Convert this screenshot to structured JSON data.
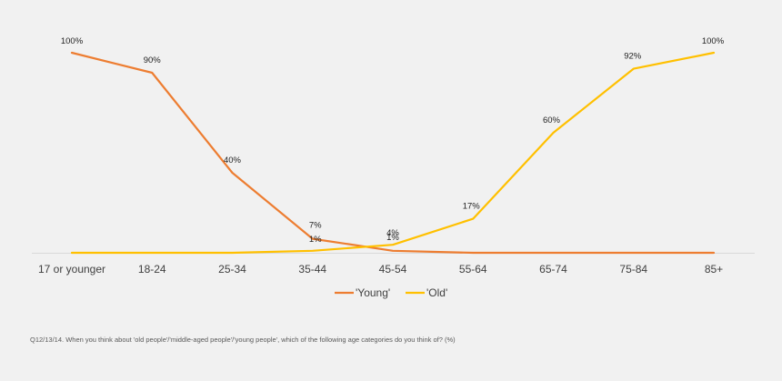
{
  "chart_data": {
    "type": "line",
    "categories": [
      "17 or younger",
      "18-24",
      "25-34",
      "35-44",
      "45-54",
      "55-64",
      "65-74",
      "75-84",
      "85+"
    ],
    "ylim": [
      0,
      100
    ],
    "grid": false,
    "legend_position": "bottom",
    "series": [
      {
        "name": "'Young'",
        "color": "#ED7D31",
        "values": [
          100,
          90,
          40,
          7,
          1,
          0,
          0,
          0,
          0
        ],
        "labels": [
          "100%",
          "90%",
          "40%",
          "7%",
          "1%",
          "",
          "",
          "",
          ""
        ]
      },
      {
        "name": "'Old'",
        "color": "#FFC000",
        "values": [
          0,
          0,
          0,
          1,
          4,
          17,
          60,
          92,
          100
        ],
        "labels": [
          "",
          "",
          "",
          "1%",
          "4%",
          "17%",
          "60%",
          "92%",
          "100%"
        ]
      }
    ]
  },
  "footnote": "Q12/13/14. When you think about 'old people'/'middle-aged people'/'young people', which of the following age categories do you think of? (%)",
  "colors": {
    "background": "#f1f1f1",
    "axis": "#d9d9d9"
  }
}
